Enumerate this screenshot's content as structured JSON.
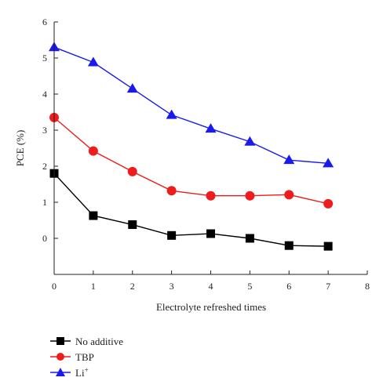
{
  "chart_data": {
    "type": "line",
    "title": "",
    "xlabel": "Electrolyte refreshed times",
    "ylabel": "PCE (%)",
    "xlim": [
      0,
      8
    ],
    "ylim": [
      -1,
      6
    ],
    "xticks": [
      0,
      1,
      2,
      3,
      4,
      5,
      6,
      7,
      8
    ],
    "yticks": [
      0,
      1,
      2,
      3,
      4,
      5,
      6
    ],
    "ytick_labels": [
      "0",
      "1",
      "2",
      "3",
      "4",
      "5",
      "6"
    ],
    "grid": false,
    "legend_position": "bottom-left, below plot",
    "x": [
      0,
      1,
      2,
      3,
      4,
      5,
      6,
      7
    ],
    "series": [
      {
        "name": "No additive",
        "values": [
          1.8,
          0.63,
          0.38,
          0.08,
          0.13,
          0.0,
          -0.2,
          -0.22
        ],
        "color": "#000000",
        "marker": "square"
      },
      {
        "name": "TBP",
        "values": [
          3.35,
          2.42,
          1.85,
          1.32,
          1.18,
          1.18,
          1.21,
          0.96
        ],
        "color": "#ee1c1c",
        "marker": "circle"
      },
      {
        "name": "Li+",
        "values": [
          5.3,
          4.88,
          4.15,
          3.42,
          3.04,
          2.68,
          2.17,
          2.08
        ],
        "color": "#1a1aee",
        "marker": "triangle"
      }
    ]
  },
  "legend": {
    "items": [
      {
        "label": "No additive"
      },
      {
        "label": "TBP"
      },
      {
        "label": "Li",
        "sup": "+"
      }
    ]
  }
}
